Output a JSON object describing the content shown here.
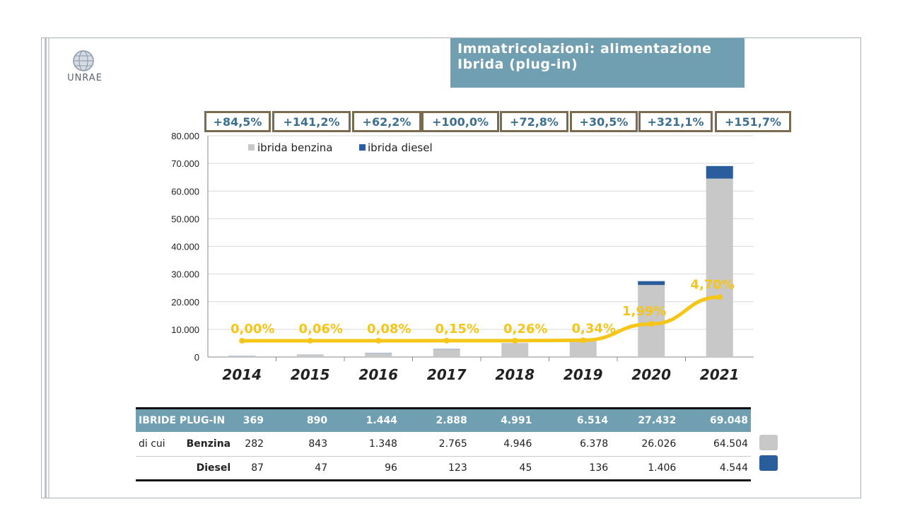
{
  "header": {
    "title_line1": "Immatricolazioni: alimentazione",
    "title_line2": "Ibrida (plug-in)",
    "logo_text": "UNRAE"
  },
  "growth_labels": [
    "+84,5%",
    "+141,2%",
    "+62,2%",
    "+100,0%",
    "+72,8%",
    "+30,5%",
    "+321,1%",
    "+151,7%"
  ],
  "colors": {
    "benzina": "#c8c8c8",
    "diesel": "#2a5d9b",
    "share_line": "#f5c518",
    "title_bg": "#6f9fb1"
  },
  "chart_data": {
    "type": "bar",
    "stacked": true,
    "categories": [
      "2014",
      "2015",
      "2016",
      "2017",
      "2018",
      "2019",
      "2020",
      "2021"
    ],
    "series": [
      {
        "name": "ibrida benzina",
        "values": [
          282,
          843,
          1348,
          2765,
          4946,
          6378,
          26026,
          64504
        ]
      },
      {
        "name": "ibrida diesel",
        "values": [
          87,
          47,
          96,
          123,
          45,
          136,
          1406,
          4544
        ]
      }
    ],
    "share_line": {
      "labels": [
        "0,00%",
        "0,06%",
        "0,08%",
        "0,15%",
        "0,26%",
        "0,34%",
        "1,99%",
        "4,70%"
      ]
    },
    "y_ticks": [
      "80.000",
      "70.000",
      "60.000",
      "50.000",
      "40.000",
      "30.000",
      "20.000",
      "10.000",
      "0"
    ],
    "ylim": [
      0,
      80000
    ],
    "legend": {
      "position": "top-left"
    }
  },
  "table": {
    "header_label": "IBRIDE PLUG-IN",
    "totals": [
      "369",
      "890",
      "1.444",
      "2.888",
      "4.991",
      "6.514",
      "27.432",
      "69.048"
    ],
    "di_cui": "di cui",
    "benzina_label": "Benzina",
    "benzina": [
      "282",
      "843",
      "1.348",
      "2.765",
      "4.946",
      "6.378",
      "26.026",
      "64.504"
    ],
    "diesel_label": "Diesel",
    "diesel": [
      "87",
      "47",
      "96",
      "123",
      "45",
      "136",
      "1.406",
      "4.544"
    ]
  }
}
